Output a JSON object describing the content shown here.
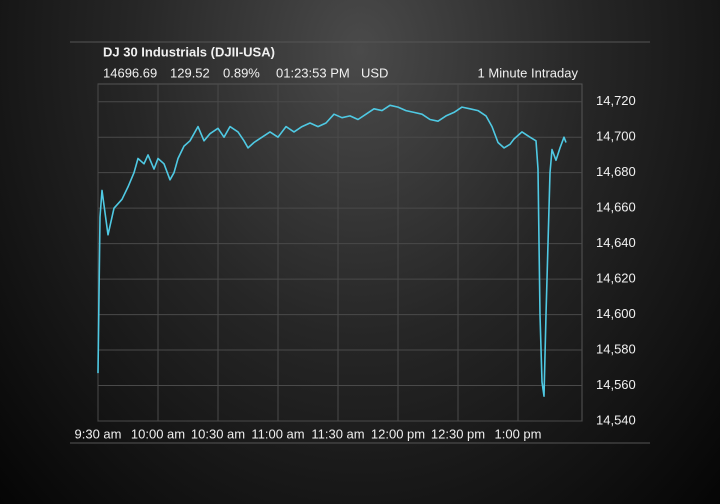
{
  "chart_data": {
    "type": "line",
    "title": "DJ 30 Industrials (DJII-USA)",
    "last": "14696.69",
    "change": "129.52",
    "percent_change": "0.89%",
    "time": "01:23:53 PM",
    "currency": "USD",
    "interval": "1 Minute Intraday",
    "x": [
      "09:30",
      "09:31",
      "09:32",
      "09:35",
      "09:38",
      "09:42",
      "09:45",
      "09:48",
      "09:50",
      "09:53",
      "09:55",
      "09:58",
      "10:00",
      "10:03",
      "10:06",
      "10:08",
      "10:10",
      "10:13",
      "10:16",
      "10:20",
      "10:23",
      "10:26",
      "10:30",
      "10:33",
      "10:36",
      "10:40",
      "10:43",
      "10:45",
      "10:48",
      "10:52",
      "10:56",
      "11:00",
      "11:04",
      "11:08",
      "11:12",
      "11:16",
      "11:20",
      "11:24",
      "11:28",
      "11:32",
      "11:36",
      "11:40",
      "11:44",
      "11:48",
      "11:52",
      "11:56",
      "12:00",
      "12:04",
      "12:08",
      "12:12",
      "12:16",
      "12:20",
      "12:24",
      "12:28",
      "12:32",
      "12:36",
      "12:40",
      "12:44",
      "12:47",
      "12:50",
      "12:53",
      "12:56",
      "12:58",
      "13:02",
      "13:06",
      "13:09",
      "13:10",
      "13:11",
      "13:12",
      "13:13",
      "13:14",
      "13:15",
      "13:16",
      "13:17",
      "13:19",
      "13:21",
      "13:23",
      "13:24"
    ],
    "series": [
      {
        "name": "DJII-USA",
        "color": "#4fc9e3",
        "values": [
          14567,
          14655,
          14670,
          14645,
          14660,
          14665,
          14672,
          14680,
          14688,
          14685,
          14690,
          14682,
          14688,
          14685,
          14676,
          14680,
          14688,
          14695,
          14698,
          14706,
          14698,
          14702,
          14705,
          14700,
          14706,
          14703,
          14698,
          14694,
          14697,
          14700,
          14703,
          14700,
          14706,
          14703,
          14706,
          14708,
          14706,
          14708,
          14713,
          14711,
          14712,
          14710,
          14713,
          14716,
          14715,
          14718,
          14717,
          14715,
          14714,
          14713,
          14710,
          14709,
          14712,
          14714,
          14717,
          14716,
          14715,
          14712,
          14706,
          14697,
          14694,
          14696,
          14699,
          14703,
          14700,
          14698,
          14682,
          14600,
          14562,
          14554,
          14600,
          14640,
          14680,
          14693,
          14687,
          14694,
          14700,
          14697
        ]
      }
    ],
    "xlim": [
      "09:30",
      "13:32"
    ],
    "xticks": [
      {
        "value": "09:30",
        "label": "9:30 am"
      },
      {
        "value": "10:00",
        "label": "10:00 am"
      },
      {
        "value": "10:30",
        "label": "10:30 am"
      },
      {
        "value": "11:00",
        "label": "11:00 am"
      },
      {
        "value": "11:30",
        "label": "11:30 am"
      },
      {
        "value": "12:00",
        "label": "12:00 pm"
      },
      {
        "value": "12:30",
        "label": "12:30 pm"
      },
      {
        "value": "13:00",
        "label": "1:00 pm"
      }
    ],
    "ylim": [
      14540,
      14730
    ],
    "yticks": [
      {
        "value": 14540,
        "label": "14,540"
      },
      {
        "value": 14560,
        "label": "14,560"
      },
      {
        "value": 14580,
        "label": "14,580"
      },
      {
        "value": 14600,
        "label": "14,600"
      },
      {
        "value": 14620,
        "label": "14,620"
      },
      {
        "value": 14640,
        "label": "14,640"
      },
      {
        "value": 14660,
        "label": "14,660"
      },
      {
        "value": 14680,
        "label": "14,680"
      },
      {
        "value": 14700,
        "label": "14,700"
      },
      {
        "value": 14720,
        "label": "14,720"
      }
    ],
    "grid": true
  }
}
